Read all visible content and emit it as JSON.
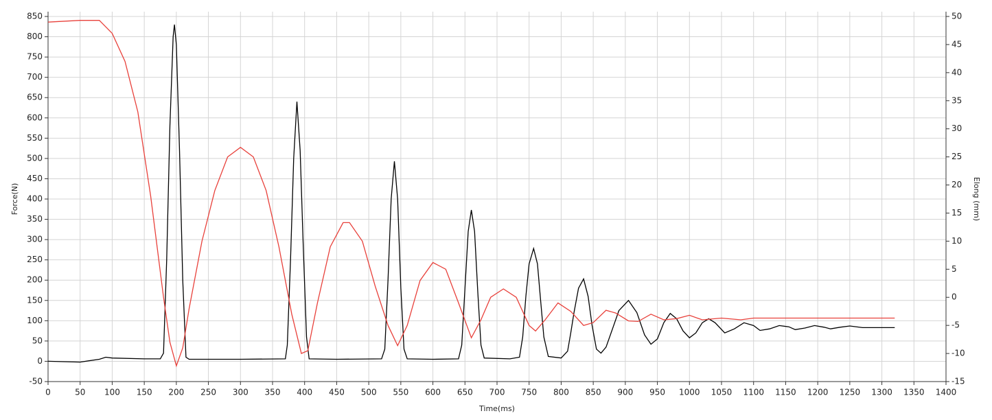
{
  "chart_data": {
    "type": "line",
    "xlabel": "Time(ms)",
    "ylabel": "Force(N)",
    "y2label": "Elong (mm)",
    "xlim": [
      0,
      1400
    ],
    "ylim": [
      -50,
      850
    ],
    "y2lim": [
      -15,
      50
    ],
    "xticks": [
      0,
      50,
      100,
      150,
      200,
      250,
      300,
      350,
      400,
      450,
      500,
      550,
      600,
      650,
      700,
      750,
      800,
      850,
      900,
      950,
      1000,
      1050,
      1100,
      1150,
      1200,
      1250,
      1300,
      1350,
      1400
    ],
    "yticks": [
      -50,
      0,
      50,
      100,
      150,
      200,
      250,
      300,
      350,
      400,
      450,
      500,
      550,
      600,
      650,
      700,
      750,
      800,
      850
    ],
    "y2ticks": [
      -15,
      -10,
      -5,
      0,
      5,
      10,
      15,
      20,
      25,
      30,
      35,
      40,
      45,
      50
    ],
    "grid": true,
    "series": [
      {
        "name": "Force",
        "color": "#000000",
        "axis": "y",
        "x": [
          0,
          50,
          80,
          90,
          100,
          150,
          175,
          180,
          185,
          190,
          195,
          197,
          200,
          205,
          210,
          215,
          220,
          300,
          370,
          373,
          378,
          383,
          388,
          393,
          398,
          403,
          407,
          450,
          520,
          525,
          530,
          535,
          540,
          545,
          550,
          555,
          560,
          600,
          640,
          645,
          650,
          655,
          660,
          665,
          670,
          675,
          680,
          720,
          735,
          740,
          745,
          750,
          757,
          763,
          768,
          773,
          780,
          800,
          810,
          815,
          820,
          827,
          835,
          842,
          848,
          855,
          862,
          870,
          880,
          890,
          905,
          918,
          930,
          940,
          950,
          960,
          970,
          980,
          990,
          1000,
          1010,
          1020,
          1030,
          1040,
          1055,
          1070,
          1085,
          1100,
          1110,
          1125,
          1140,
          1155,
          1165,
          1180,
          1195,
          1210,
          1220,
          1235,
          1250,
          1270,
          1290,
          1320
        ],
        "values": [
          0,
          -2,
          5,
          10,
          8,
          6,
          6,
          20,
          250,
          580,
          800,
          830,
          780,
          520,
          200,
          10,
          5,
          5,
          6,
          40,
          250,
          500,
          640,
          520,
          280,
          60,
          6,
          5,
          6,
          30,
          200,
          400,
          493,
          400,
          180,
          30,
          6,
          5,
          6,
          40,
          180,
          320,
          373,
          320,
          170,
          40,
          8,
          6,
          10,
          60,
          160,
          240,
          278,
          240,
          150,
          60,
          12,
          8,
          25,
          70,
          120,
          180,
          203,
          160,
          90,
          30,
          20,
          35,
          80,
          125,
          150,
          120,
          65,
          42,
          55,
          95,
          118,
          105,
          75,
          58,
          70,
          95,
          105,
          95,
          70,
          80,
          95,
          88,
          76,
          80,
          88,
          85,
          78,
          82,
          88,
          84,
          80,
          84,
          87,
          83,
          83,
          83
        ]
      },
      {
        "name": "Elong",
        "color": "#e8403a",
        "axis": "y2",
        "x": [
          0,
          50,
          80,
          100,
          120,
          140,
          160,
          180,
          190,
          200,
          210,
          220,
          240,
          260,
          280,
          300,
          320,
          340,
          360,
          380,
          395,
          405,
          420,
          440,
          460,
          470,
          490,
          510,
          530,
          545,
          560,
          580,
          600,
          620,
          640,
          660,
          675,
          690,
          710,
          730,
          750,
          760,
          775,
          795,
          815,
          835,
          850,
          870,
          885,
          905,
          920,
          940,
          960,
          980,
          1000,
          1020,
          1050,
          1080,
          1100,
          1200,
          1320
        ],
        "values": [
          49,
          49.3,
          49.3,
          47,
          42,
          33,
          18,
          0,
          -8,
          -12.2,
          -9,
          -2,
          10,
          19,
          25,
          26.7,
          25,
          19,
          9,
          -3,
          -10,
          -9.5,
          -1,
          9,
          13.3,
          13.3,
          10,
          2,
          -5,
          -8.6,
          -5,
          3,
          6.2,
          5,
          -1,
          -7.2,
          -4,
          0,
          1.5,
          0,
          -5,
          -6,
          -4,
          -1,
          -2.5,
          -5,
          -4.5,
          -2.3,
          -2.8,
          -4.2,
          -4.3,
          -3,
          -4,
          -3.8,
          -3.2,
          -4,
          -3.7,
          -4,
          -3.7,
          -3.7,
          -3.7
        ]
      }
    ]
  }
}
